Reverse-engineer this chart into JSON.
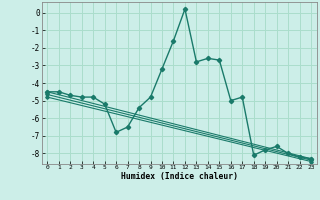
{
  "xlabel": "Humidex (Indice chaleur)",
  "background_color": "#cceee8",
  "grid_color": "#aaddcc",
  "line_color": "#1a7a6a",
  "xlim": [
    -0.5,
    23.5
  ],
  "ylim": [
    -8.6,
    0.6
  ],
  "yticks": [
    0,
    -1,
    -2,
    -3,
    -4,
    -5,
    -6,
    -7,
    -8
  ],
  "xticks": [
    0,
    1,
    2,
    3,
    4,
    5,
    6,
    7,
    8,
    9,
    10,
    11,
    12,
    13,
    14,
    15,
    16,
    17,
    18,
    19,
    20,
    21,
    22,
    23
  ],
  "main_series": [
    [
      0,
      -4.5
    ],
    [
      1,
      -4.5
    ],
    [
      2,
      -4.7
    ],
    [
      3,
      -4.8
    ],
    [
      4,
      -4.8
    ],
    [
      5,
      -5.2
    ],
    [
      6,
      -6.8
    ],
    [
      7,
      -6.5
    ],
    [
      8,
      -5.4
    ],
    [
      9,
      -4.8
    ],
    [
      10,
      -3.2
    ],
    [
      11,
      -1.6
    ],
    [
      12,
      0.2
    ],
    [
      13,
      -2.8
    ],
    [
      14,
      -2.6
    ],
    [
      15,
      -2.7
    ],
    [
      16,
      -5.0
    ],
    [
      17,
      -4.8
    ],
    [
      18,
      -8.1
    ],
    [
      19,
      -7.8
    ],
    [
      20,
      -7.6
    ],
    [
      21,
      -8.0
    ],
    [
      22,
      -8.2
    ],
    [
      23,
      -8.3
    ]
  ],
  "linear_series": [
    [
      0,
      -4.5
    ],
    [
      23,
      -8.3
    ]
  ],
  "linear_series2": [
    [
      0,
      -4.65
    ],
    [
      23,
      -8.38
    ]
  ],
  "linear_series3": [
    [
      0,
      -4.8
    ],
    [
      23,
      -8.46
    ]
  ]
}
